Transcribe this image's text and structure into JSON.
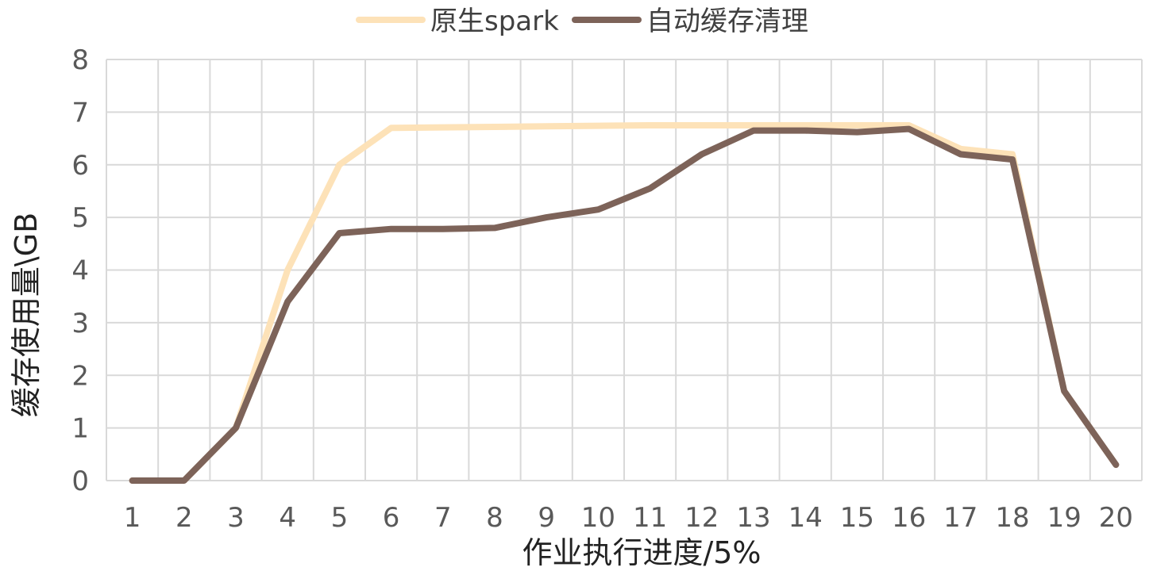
{
  "chart_data": {
    "type": "line",
    "xlabel": "作业执行进度/5%",
    "ylabel": "缓存使用量\\GB",
    "categories": [
      "1",
      "2",
      "3",
      "4",
      "5",
      "6",
      "7",
      "8",
      "9",
      "10",
      "11",
      "12",
      "13",
      "14",
      "15",
      "16",
      "17",
      "18",
      "19",
      "20"
    ],
    "ylim": [
      0,
      8
    ],
    "yticks": [
      0,
      1,
      2,
      3,
      4,
      5,
      6,
      7,
      8
    ],
    "grid": true,
    "legend_position": "top",
    "series": [
      {
        "name": "原生spark",
        "color": "#fde2b8",
        "values": [
          0,
          0,
          1,
          4,
          6,
          6.7,
          6.71,
          6.72,
          6.73,
          6.74,
          6.75,
          6.75,
          6.75,
          6.75,
          6.75,
          6.75,
          6.3,
          6.2,
          1.7,
          0.3
        ]
      },
      {
        "name": "自动缓存清理",
        "color": "#7d6359",
        "values": [
          0,
          0,
          1,
          3.4,
          4.7,
          4.78,
          4.78,
          4.8,
          5.0,
          5.15,
          5.55,
          6.2,
          6.65,
          6.65,
          6.62,
          6.68,
          6.2,
          6.1,
          1.7,
          0.3
        ]
      }
    ]
  }
}
